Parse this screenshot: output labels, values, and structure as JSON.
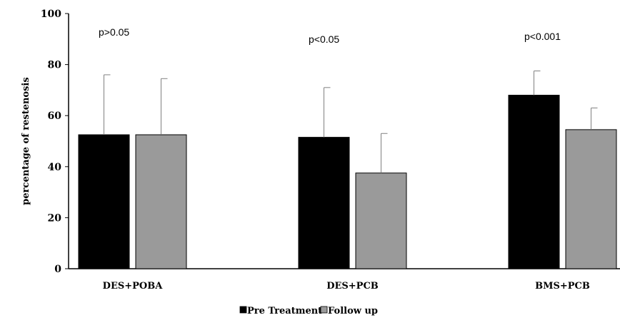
{
  "chart_data": {
    "type": "bar",
    "title": "",
    "xlabel": "",
    "ylabel": "percentage of restenosis",
    "ylim": [
      0,
      100
    ],
    "yticks": [
      0,
      20,
      40,
      60,
      80,
      100
    ],
    "grid": false,
    "legend_position": "bottom",
    "categories": [
      "DES+POBA",
      "DES+PCB",
      "BMS+PCB"
    ],
    "series": [
      {
        "name": "Pre Treatment",
        "color": "#000000",
        "values": [
          52.5,
          51.5,
          68
        ],
        "error": [
          23.5,
          19.5,
          9.5
        ]
      },
      {
        "name": "Follow up",
        "color": "#9a9a9a",
        "values": [
          52.5,
          37.5,
          54.5
        ],
        "error": [
          22,
          15.5,
          8.5
        ]
      }
    ],
    "annotations": [
      "p>0.05",
      "p<0.05",
      "p<0.001"
    ]
  }
}
